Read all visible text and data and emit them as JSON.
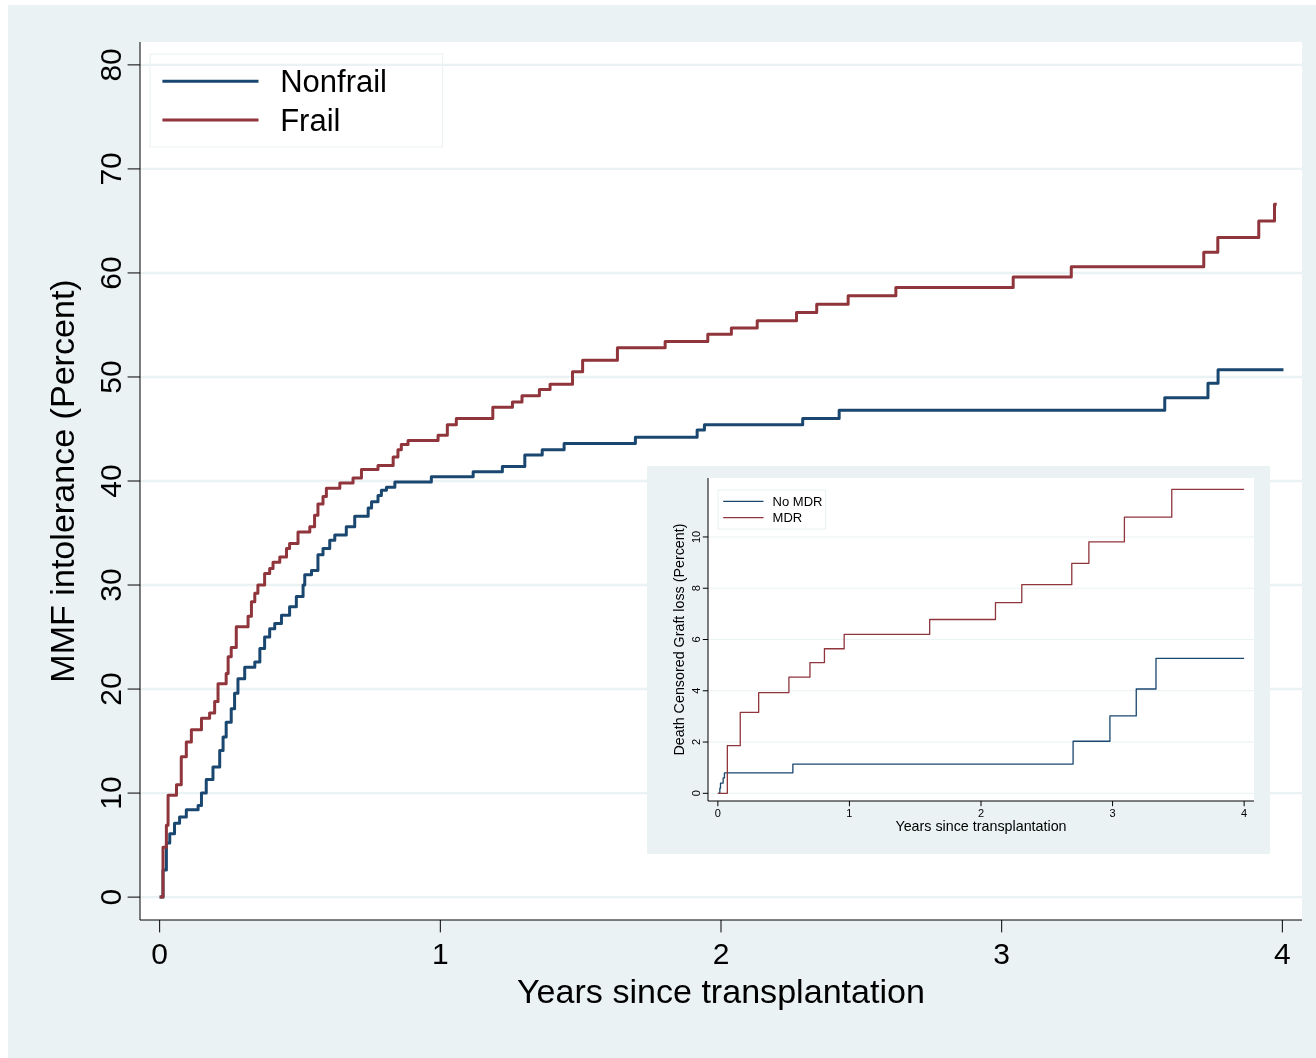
{
  "chart_data": [
    {
      "type": "step",
      "xlabel": "Years since transplantation",
      "ylabel": "MMF intolerance (Percent)",
      "xlim": [
        -0.07,
        4.07
      ],
      "ylim": [
        -2.2,
        82.2
      ],
      "xticks": [
        0,
        1,
        2,
        3,
        4
      ],
      "yticks": [
        0,
        10,
        20,
        30,
        40,
        50,
        60,
        70,
        80
      ],
      "grid": "y",
      "legend": "top left",
      "series": [
        {
          "name": "Nonfrail",
          "color": "#1a476f",
          "x": [
            0,
            0.012,
            0.024,
            0.036,
            0.053,
            0.071,
            0.095,
            0.137,
            0.149,
            0.166,
            0.19,
            0.214,
            0.226,
            0.237,
            0.255,
            0.267,
            0.279,
            0.303,
            0.339,
            0.357,
            0.374,
            0.392,
            0.41,
            0.434,
            0.463,
            0.487,
            0.511,
            0.517,
            0.541,
            0.564,
            0.582,
            0.606,
            0.624,
            0.665,
            0.695,
            0.743,
            0.755,
            0.778,
            0.79,
            0.808,
            0.838,
            0.968,
            1.117,
            1.221,
            1.301,
            1.363,
            1.441,
            1.695,
            1.915,
            1.941,
            2.291,
            2.421,
            3.581,
            3.735,
            3.771,
            4.004
          ],
          "values": [
            0,
            2.6,
            5.2,
            6.1,
            7.1,
            7.7,
            8.4,
            8.8,
            10,
            11.3,
            12.5,
            14.1,
            15.4,
            16.8,
            18.1,
            19.6,
            21,
            22.1,
            22.6,
            23.9,
            25,
            25.8,
            26.3,
            27.1,
            27.9,
            28.9,
            30,
            31,
            31.4,
            32.9,
            33.5,
            34.3,
            34.8,
            35.6,
            36.6,
            37.4,
            38,
            38.6,
            39.1,
            39.4,
            39.9,
            40.4,
            40.9,
            41.4,
            42.5,
            43,
            43.6,
            44.2,
            44.9,
            45.4,
            46,
            46.8,
            48,
            49.4,
            50.7,
            50.7
          ]
        },
        {
          "name": "Frail",
          "color": "#90353b",
          "x": [
            0,
            0.012,
            0.024,
            0.03,
            0.06,
            0.077,
            0.095,
            0.113,
            0.149,
            0.178,
            0.196,
            0.208,
            0.237,
            0.244,
            0.255,
            0.273,
            0.315,
            0.327,
            0.339,
            0.35,
            0.374,
            0.392,
            0.404,
            0.428,
            0.452,
            0.463,
            0.493,
            0.535,
            0.552,
            0.564,
            0.582,
            0.594,
            0.642,
            0.689,
            0.719,
            0.778,
            0.832,
            0.849,
            0.861,
            0.885,
            0.992,
            1.025,
            1.057,
            1.187,
            1.257,
            1.291,
            1.353,
            1.391,
            1.471,
            1.507,
            1.631,
            1.801,
            1.953,
            2.037,
            2.129,
            2.269,
            2.341,
            2.453,
            2.623,
            3.041,
            3.248,
            3.72,
            3.77,
            3.916,
            3.972,
            3.98
          ],
          "values": [
            0,
            4.8,
            6.9,
            9.8,
            10.8,
            13.5,
            14.9,
            16.1,
            17.2,
            17.7,
            18.8,
            20.5,
            21.5,
            23.1,
            24,
            26,
            27,
            28.4,
            29.2,
            30,
            31.1,
            31.6,
            32.2,
            32.7,
            33.5,
            34,
            35.1,
            35.6,
            36.7,
            37.8,
            38.5,
            39.3,
            39.8,
            40.3,
            41.1,
            41.5,
            42.3,
            43,
            43.5,
            43.9,
            44.4,
            45.4,
            46,
            47.1,
            47.6,
            48.2,
            48.8,
            49.3,
            50.5,
            51.6,
            52.8,
            53.4,
            54.1,
            54.7,
            55.4,
            56.2,
            57,
            57.8,
            58.6,
            59.6,
            60.6,
            62,
            63.4,
            65,
            66.6,
            66.6
          ]
        }
      ]
    },
    {
      "type": "step",
      "xlabel": "Years since transplantation",
      "ylabel": "Death Censored Graft loss (Percent)",
      "xlim": [
        -0.075,
        4.075
      ],
      "ylim": [
        -0.3,
        12.3
      ],
      "xticks": [
        0,
        1,
        2,
        3,
        4
      ],
      "yticks": [
        0,
        2,
        4,
        6,
        8,
        10
      ],
      "grid": "y",
      "legend": "top left",
      "series": [
        {
          "name": "No MDR",
          "color": "#1a476f",
          "x": [
            0,
            0.015,
            0.02,
            0.04,
            0.05,
            0.57,
            2.7,
            2.98,
            3.18,
            3.33,
            4.0
          ],
          "values": [
            0,
            0.2,
            0.4,
            0.6,
            0.8,
            1.14,
            2.03,
            3.02,
            4.07,
            5.26,
            5.26
          ]
        },
        {
          "name": "MDR",
          "color": "#90353b",
          "x": [
            0,
            0.072,
            0.17,
            0.31,
            0.54,
            0.7,
            0.81,
            0.96,
            1.61,
            2.11,
            2.31,
            2.69,
            2.82,
            3.09,
            3.45,
            4.0
          ],
          "values": [
            0,
            1.86,
            3.16,
            3.93,
            4.53,
            5.1,
            5.64,
            6.2,
            6.78,
            7.44,
            8.14,
            8.97,
            9.81,
            10.77,
            11.86,
            11.86
          ]
        }
      ]
    }
  ]
}
